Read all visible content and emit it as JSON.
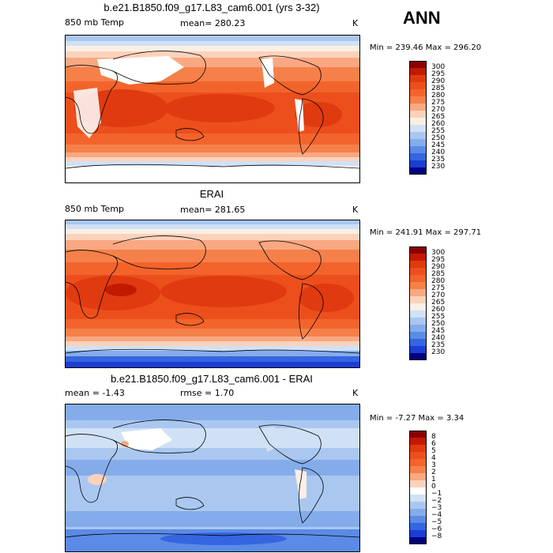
{
  "season": "ANN",
  "panels": [
    {
      "title": "b.e21.B1850.f09_g17.L83_cam6.001 (yrs 3-32)",
      "left_label": "850 mb Temp",
      "stat_text": "mean=  280.23",
      "units": "K",
      "minmax": "Min = 239.46 Max = 296.20",
      "colorbar_labels": [
        "300",
        "295",
        "290",
        "285",
        "280",
        "275",
        "270",
        "265",
        "260",
        "255",
        "250",
        "245",
        "240",
        "235",
        "230"
      ],
      "colorbar_colors": [
        "#8b0000",
        "#c21a00",
        "#e03a10",
        "#ec4f1c",
        "#f2642c",
        "#f6804a",
        "#f9a882",
        "#fcd2bb",
        "#fbefe4",
        "#d0e1f6",
        "#aac7ef",
        "#84aceb",
        "#5b8be6",
        "#3565e0",
        "#1a3ed2",
        "#00007f"
      ]
    },
    {
      "title": "ERAI",
      "left_label": "850 mb Temp",
      "stat_text": "mean=  281.65",
      "units": "K",
      "minmax": "Min = 241.91 Max = 297.71",
      "colorbar_labels": [
        "300",
        "295",
        "290",
        "285",
        "280",
        "275",
        "270",
        "265",
        "260",
        "255",
        "250",
        "245",
        "240",
        "235",
        "230"
      ],
      "colorbar_colors": [
        "#8b0000",
        "#c21a00",
        "#e03a10",
        "#ec4f1c",
        "#f2642c",
        "#f6804a",
        "#f9a882",
        "#fcd2bb",
        "#fbefe4",
        "#d0e1f6",
        "#aac7ef",
        "#84aceb",
        "#5b8be6",
        "#3565e0",
        "#1a3ed2",
        "#00007f"
      ]
    },
    {
      "title": "b.e21.B1850.f09_g17.L83_cam6.001 - ERAI",
      "left_label": "mean =   -1.43",
      "stat_text": "rmse =    1.70",
      "units": "K",
      "minmax": "Min =  -7.27 Max =   3.34",
      "colorbar_labels": [
        "8",
        "6",
        "5",
        "4",
        "3",
        "2",
        "1",
        "0",
        "−1",
        "−2",
        "−3",
        "−4",
        "−5",
        "−6",
        "−8"
      ],
      "colorbar_colors": [
        "#8b0000",
        "#c21a00",
        "#e03a10",
        "#ec4f1c",
        "#f2642c",
        "#f6804a",
        "#f9a882",
        "#fcd2bb",
        "#ffffff",
        "#d0e1f6",
        "#aac7ef",
        "#84aceb",
        "#5b8be6",
        "#3565e0",
        "#1a3ed2",
        "#00007f"
      ]
    }
  ],
  "chart_data": [
    {
      "type": "heatmap",
      "title": "b.e21.B1850.f09_g17.L83_cam6.001 (yrs 3-32)",
      "variable": "850 mb Temp",
      "units": "K",
      "mean": 280.23,
      "min": 239.46,
      "max": 296.2,
      "contour_levels": [
        230,
        235,
        240,
        245,
        250,
        255,
        260,
        265,
        270,
        275,
        280,
        285,
        290,
        295,
        300
      ]
    },
    {
      "type": "heatmap",
      "title": "ERAI",
      "variable": "850 mb Temp",
      "units": "K",
      "mean": 281.65,
      "min": 241.91,
      "max": 297.71,
      "contour_levels": [
        230,
        235,
        240,
        245,
        250,
        255,
        260,
        265,
        270,
        275,
        280,
        285,
        290,
        295,
        300
      ]
    },
    {
      "type": "heatmap",
      "title": "b.e21.B1850.f09_g17.L83_cam6.001 - ERAI",
      "units": "K",
      "mean": -1.43,
      "rmse": 1.7,
      "min": -7.27,
      "max": 3.34,
      "contour_levels": [
        -8,
        -6,
        -5,
        -4,
        -3,
        -2,
        -1,
        0,
        1,
        2,
        3,
        4,
        5,
        6,
        8
      ]
    }
  ]
}
